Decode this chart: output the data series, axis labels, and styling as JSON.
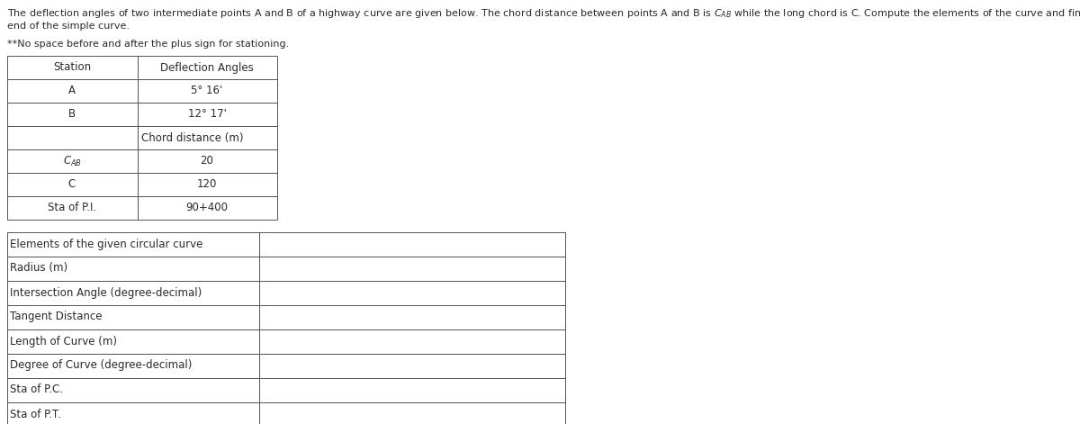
{
  "bg_color": "#ffffff",
  "text_color": "#2a2a2a",
  "border_color": "#555555",
  "fs_desc": 8.0,
  "fs_table": 8.5,
  "desc_line1": "The deflection angles of two intermediate points A and B of a highway curve are given below. The chord distance between points A and B is $C_{AB}$ while the long chord is C. Compute the elements of the curve and find the stationing of the beginning and",
  "desc_line2": "end of the simple curve.",
  "note": "**No space before and after the plus sign for stationing.",
  "table1_headers": [
    "Station",
    "Deflection Angles"
  ],
  "table1_rows": [
    [
      "A",
      "5° 16'"
    ],
    [
      "B",
      "12° 17'"
    ],
    [
      "",
      "Chord distance (m)"
    ],
    [
      "$C_{AB}$",
      "20"
    ],
    [
      "C",
      "120"
    ],
    [
      "Sta of P.I.",
      "90+400"
    ]
  ],
  "table2_header": "Elements of the given circular curve",
  "table2_rows": [
    "Radius (m)",
    "Intersection Angle (degree-decimal)",
    "Tangent Distance",
    "Length of Curve (m)",
    "Degree of Curve (degree-decimal)",
    "Sta of P.C.",
    "Sta of P.T."
  ]
}
